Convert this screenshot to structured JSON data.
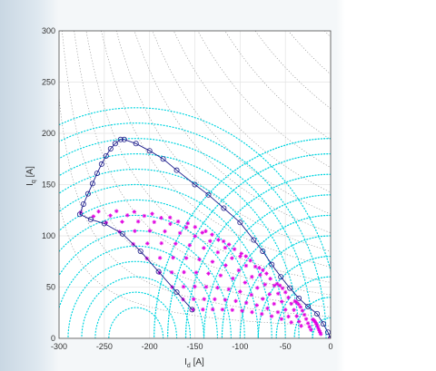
{
  "chart_data": {
    "type": "scatter",
    "xlabel": "I",
    "xlabel_sub": "d",
    "xlabel_unit": " [A]",
    "ylabel": "I",
    "ylabel_sub": "q",
    "ylabel_unit": " [A]",
    "xlim": [
      -300,
      0
    ],
    "ylim": [
      0,
      300
    ],
    "x_ticks": [
      -300,
      -250,
      -200,
      -150,
      -100,
      -50,
      0
    ],
    "y_ticks": [
      0,
      50,
      100,
      150,
      200,
      250,
      300
    ],
    "x_tick_labels": [
      "-300",
      "-250",
      "-200",
      "-150",
      "-100",
      "-50",
      "0"
    ],
    "y_tick_labels": [
      "0",
      "50",
      "100",
      "150",
      "200",
      "250",
      "300"
    ],
    "grid": true,
    "colors": {
      "current_limit_circles": "#00d5e0",
      "operating_points": "#e000e0",
      "trajectory": "#1e1e8c",
      "torque_curves": "#8a8a8a"
    },
    "current_limit_circles": {
      "center": [
        0,
        0
      ],
      "radii": [
        20,
        40,
        60,
        80,
        100,
        120,
        140,
        160,
        180,
        195
      ]
    },
    "voltage_ellipses": {
      "center": [
        -215,
        0
      ],
      "radii": [
        30,
        45,
        60,
        75,
        90,
        105,
        120,
        135,
        150,
        165,
        180,
        195,
        210,
        225
      ]
    },
    "torque_curves": {
      "x_range": [
        -300,
        0
      ],
      "constants": [
        4000,
        7000,
        10000,
        14000,
        18000,
        23000,
        28000,
        34000,
        40000,
        47000,
        55000,
        64000,
        74000,
        85000,
        97000
      ]
    },
    "mtpa_points": [
      [
        -152,
        28
      ],
      [
        -163,
        38
      ],
      [
        -175,
        50
      ],
      [
        -189,
        64
      ],
      [
        -203,
        78
      ],
      [
        -218,
        92
      ],
      [
        -233,
        104
      ],
      [
        -248,
        113
      ],
      [
        -262,
        119
      ],
      [
        -276,
        123
      ]
    ],
    "trajectory": [
      [
        -153,
        28
      ],
      [
        -170,
        45
      ],
      [
        -190,
        65
      ],
      [
        -210,
        85
      ],
      [
        -230,
        102
      ],
      [
        -250,
        112
      ],
      [
        -265,
        116
      ],
      [
        -277,
        121
      ],
      [
        -273,
        131
      ],
      [
        -268,
        141
      ],
      [
        -263,
        151
      ],
      [
        -258,
        161
      ],
      [
        -253,
        170
      ],
      [
        -248,
        178
      ],
      [
        -243,
        185
      ],
      [
        -238,
        190
      ],
      [
        -232,
        194
      ],
      [
        -228,
        194
      ],
      [
        -215,
        190
      ],
      [
        -200,
        183
      ],
      [
        -185,
        175
      ],
      [
        -170,
        164
      ],
      [
        -150,
        150
      ],
      [
        -135,
        140
      ],
      [
        -118,
        127
      ],
      [
        -100,
        113
      ],
      [
        -85,
        96
      ],
      [
        -75,
        85
      ],
      [
        -65,
        72
      ],
      [
        -55,
        60
      ],
      [
        -45,
        49
      ],
      [
        -35,
        39
      ],
      [
        -25,
        31
      ],
      [
        -15,
        24
      ],
      [
        -8,
        14
      ],
      [
        -3,
        6
      ],
      [
        0,
        0
      ]
    ]
  }
}
